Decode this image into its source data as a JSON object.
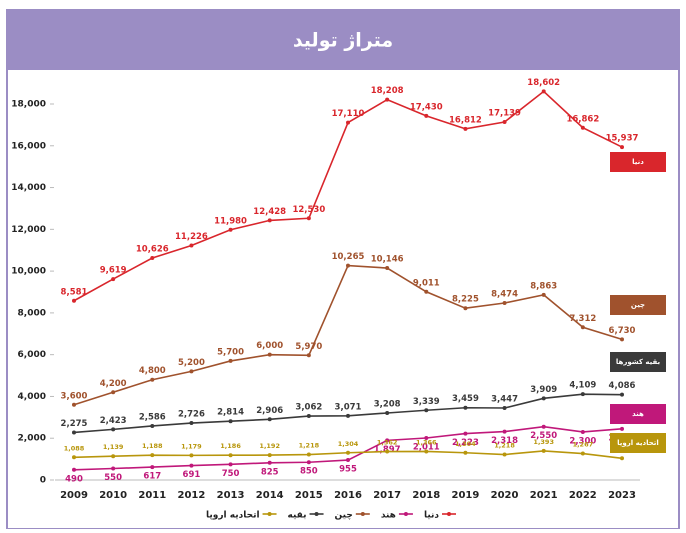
{
  "chart_data": {
    "type": "line",
    "title": "متراژ تولید",
    "categories": [
      "2009",
      "2010",
      "2011",
      "2012",
      "2013",
      "2014",
      "2015",
      "2016",
      "2017",
      "2018",
      "2019",
      "2020",
      "2021",
      "2022",
      "2023"
    ],
    "ylim": [
      0,
      18000
    ],
    "yticks": [
      0,
      {
        "value": 2000,
        "label": "2,000"
      },
      {
        "value": 4000,
        "label": "4,000"
      },
      {
        "value": 6000,
        "label": "6,000"
      },
      {
        "value": 8000,
        "label": "8,000"
      },
      {
        "value": 10000,
        "label": "10,000"
      },
      {
        "value": 12000,
        "label": "12,000"
      },
      {
        "value": 14000,
        "label": "14,000"
      },
      {
        "value": 16000,
        "label": "16,000"
      },
      {
        "value": 18000,
        "label": "18,000"
      }
    ],
    "legend": "bottom",
    "series": [
      {
        "name": "دنیا",
        "label": "دنیا",
        "color": "#d9262c",
        "values": [
          8581,
          9619,
          10626,
          11226,
          11980,
          12428,
          12530,
          17110,
          18208,
          17430,
          16812,
          17139,
          18602,
          16862,
          15937
        ],
        "value_labels": [
          "8,581",
          "9,619",
          "10,626",
          "11,226",
          "11,980",
          "12,428",
          "12,530",
          "17,110",
          "18,208",
          "17,430",
          "16,812",
          "17,139",
          "18,602",
          "16,862",
          "15,937"
        ]
      },
      {
        "name": "هند",
        "label": "هند",
        "color": "#c0187a",
        "values": [
          490,
          550,
          617,
          691,
          750,
          825,
          850,
          955,
          1897,
          2011,
          2223,
          2318,
          2550,
          2300,
          2450
        ],
        "value_labels": [
          "490",
          "550",
          "617",
          "691",
          "750",
          "825",
          "850",
          "955",
          "1,897",
          "2,011",
          "2,223",
          "2,318",
          "2,550",
          "2,300",
          "2,450"
        ]
      },
      {
        "name": "چین",
        "label": "چین",
        "color": "#a0522d",
        "values": [
          3600,
          4200,
          4800,
          5200,
          5700,
          6000,
          5970,
          10265,
          10146,
          9011,
          8225,
          8474,
          8863,
          7312,
          6730
        ],
        "value_labels": [
          "3,600",
          "4,200",
          "4,800",
          "5,200",
          "5,700",
          "6,000",
          "5,970",
          "10,265",
          "10,146",
          "9,011",
          "8,225",
          "8,474",
          "8,863",
          "7,312",
          "6,730"
        ]
      },
      {
        "name": "بقیه",
        "label": "بقیه کشورها",
        "color": "#3a3a3a",
        "values": [
          2275,
          2423,
          2586,
          2726,
          2814,
          2906,
          3062,
          3071,
          3208,
          3339,
          3459,
          3447,
          3909,
          4109,
          4086
        ],
        "value_labels": [
          "2,275",
          "2,423",
          "2,586",
          "2,726",
          "2,814",
          "2,906",
          "3,062",
          "3,071",
          "3,208",
          "3,339",
          "3,459",
          "3,447",
          "3,909",
          "4,109",
          "4,086"
        ]
      },
      {
        "name": "اتحادیه اروپا",
        "label": "اتحادیه اروپا",
        "color": "#b8960c",
        "values": [
          1088,
          1139,
          1188,
          1179,
          1186,
          1192,
          1218,
          1304,
          1362,
          1366,
          1304,
          1218,
          1393,
          1267,
          1039
        ],
        "value_labels": [
          "1,088",
          "1,139",
          "1,188",
          "1,179",
          "1,186",
          "1,192",
          "1,218",
          "1,304",
          "1,362",
          "1,366",
          "1,304",
          "1,218",
          "1,393",
          "1,267",
          "1,039"
        ]
      }
    ]
  }
}
